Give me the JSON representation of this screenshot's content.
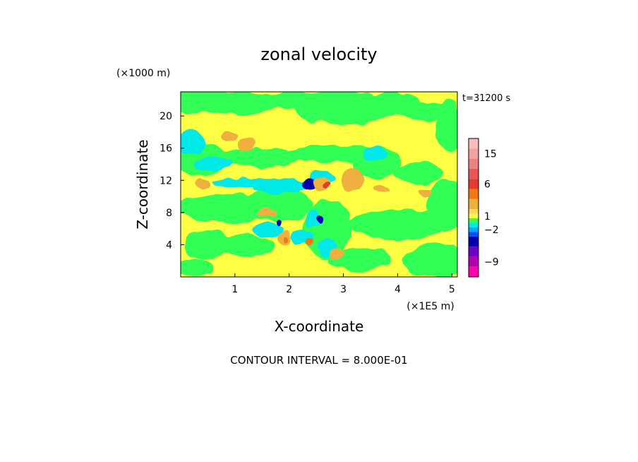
{
  "chart_data": {
    "type": "heatmap",
    "title": "zonal velocity",
    "xlabel": "X-coordinate",
    "ylabel": "Z-coordinate",
    "x_unit_label": "(×1E5 m)",
    "y_unit_label": "(×1000 m)",
    "time_label": "t=31200 s",
    "contour_interval_text": "CONTOUR INTERVAL = 8.000E-01",
    "xlim": [
      0,
      5.1
    ],
    "ylim": [
      0,
      23
    ],
    "x_ticks": [
      1,
      2,
      3,
      4,
      5
    ],
    "y_ticks": [
      4,
      8,
      12,
      16,
      20
    ],
    "colorbar": {
      "labeled_ticks": [
        15,
        6,
        1,
        -2,
        -9
      ],
      "bands": [
        {
          "value": 18,
          "color": "#f7bcbc"
        },
        {
          "value": 15,
          "color": "#f3a2a2"
        },
        {
          "value": 12,
          "color": "#ee8080"
        },
        {
          "value": 9,
          "color": "#ea5757"
        },
        {
          "value": 7,
          "color": "#e53a2c"
        },
        {
          "value": 5,
          "color": "#f07a10"
        },
        {
          "value": 3,
          "color": "#f0b040"
        },
        {
          "value": 1.6,
          "color": "#f5d75a"
        },
        {
          "value": 0.8,
          "color": "#ffff44"
        },
        {
          "value": 0,
          "color": "#33ff55"
        },
        {
          "value": -0.8,
          "color": "#00e8e8"
        },
        {
          "value": -1.6,
          "color": "#00a8ff"
        },
        {
          "value": -2.4,
          "color": "#0050ff"
        },
        {
          "value": -4,
          "color": "#0000b0"
        },
        {
          "value": -7,
          "color": "#7000c0"
        },
        {
          "value": -10,
          "color": "#b000b0"
        },
        {
          "value": -13,
          "color": "#ff00b0"
        }
      ]
    },
    "field": {
      "background": "#ffff44",
      "blobs": [
        {
          "cx": 0.15,
          "cz": 22.0,
          "rx": 0.6,
          "rz": 1.8,
          "color": "#33ff55"
        },
        {
          "cx": 1.0,
          "cz": 21.6,
          "rx": 0.9,
          "rz": 1.4,
          "color": "#33ff55"
        },
        {
          "cx": 2.2,
          "cz": 22.0,
          "rx": 0.7,
          "rz": 1.1,
          "color": "#33ff55"
        },
        {
          "cx": 3.0,
          "cz": 21.0,
          "rx": 0.9,
          "rz": 2.1,
          "color": "#33ff55"
        },
        {
          "cx": 3.9,
          "cz": 21.6,
          "rx": 0.5,
          "rz": 1.4,
          "color": "#33ff55"
        },
        {
          "cx": 4.5,
          "cz": 20.5,
          "rx": 0.55,
          "rz": 1.1,
          "color": "#33ff55"
        },
        {
          "cx": 4.95,
          "cz": 18.5,
          "rx": 0.25,
          "rz": 3.2,
          "color": "#33ff55"
        },
        {
          "cx": 0.4,
          "cz": 14.5,
          "rx": 0.5,
          "rz": 2.0,
          "color": "#33ff55"
        },
        {
          "cx": 1.4,
          "cz": 14.8,
          "rx": 0.8,
          "rz": 1.3,
          "color": "#33ff55"
        },
        {
          "cx": 2.8,
          "cz": 15.3,
          "rx": 0.8,
          "rz": 1.0,
          "color": "#33ff55"
        },
        {
          "cx": 3.6,
          "cz": 14.2,
          "rx": 0.45,
          "rz": 1.9,
          "color": "#33ff55"
        },
        {
          "cx": 4.4,
          "cz": 13.0,
          "rx": 0.45,
          "rz": 1.4,
          "color": "#33ff55"
        },
        {
          "cx": 4.9,
          "cz": 9.0,
          "rx": 0.35,
          "rz": 3.2,
          "color": "#33ff55"
        },
        {
          "cx": 4.0,
          "cz": 6.5,
          "rx": 0.9,
          "rz": 1.9,
          "color": "#33ff55"
        },
        {
          "cx": 4.7,
          "cz": 2.0,
          "rx": 0.6,
          "rz": 2.1,
          "color": "#33ff55"
        },
        {
          "cx": 3.3,
          "cz": 2.2,
          "rx": 0.6,
          "rz": 1.4,
          "color": "#33ff55"
        },
        {
          "cx": 2.7,
          "cz": 6.0,
          "rx": 0.45,
          "rz": 3.6,
          "color": "#33ff55"
        },
        {
          "cx": 1.8,
          "cz": 9.0,
          "rx": 0.6,
          "rz": 2.2,
          "color": "#33ff55"
        },
        {
          "cx": 0.8,
          "cz": 8.6,
          "rx": 0.9,
          "rz": 1.7,
          "color": "#33ff55"
        },
        {
          "cx": 0.5,
          "cz": 4.0,
          "rx": 0.45,
          "rz": 1.8,
          "color": "#33ff55"
        },
        {
          "cx": 0.25,
          "cz": 1.2,
          "rx": 0.35,
          "rz": 1.1,
          "color": "#33ff55"
        },
        {
          "cx": 1.2,
          "cz": 3.8,
          "rx": 0.5,
          "rz": 1.4,
          "color": "#33ff55"
        },
        {
          "cx": 0.2,
          "cz": 16.8,
          "rx": 0.3,
          "rz": 1.4,
          "color": "#00e8e8"
        },
        {
          "cx": 0.6,
          "cz": 14.0,
          "rx": 0.35,
          "rz": 0.9,
          "color": "#00e8e8"
        },
        {
          "cx": 1.1,
          "cz": 11.8,
          "rx": 0.5,
          "rz": 0.6,
          "color": "#00e8e8"
        },
        {
          "cx": 1.85,
          "cz": 11.3,
          "rx": 0.5,
          "rz": 0.9,
          "color": "#00e8e8"
        },
        {
          "cx": 2.6,
          "cz": 12.2,
          "rx": 0.25,
          "rz": 1.1,
          "color": "#00e8e8"
        },
        {
          "cx": 3.6,
          "cz": 15.2,
          "rx": 0.2,
          "rz": 1.0,
          "color": "#00e8e8"
        },
        {
          "cx": 1.6,
          "cz": 5.8,
          "rx": 0.3,
          "rz": 0.8,
          "color": "#00e8e8"
        },
        {
          "cx": 2.25,
          "cz": 5.0,
          "rx": 0.2,
          "rz": 0.9,
          "color": "#00e8e8"
        },
        {
          "cx": 2.7,
          "cz": 3.8,
          "rx": 0.18,
          "rz": 1.2,
          "color": "#00e8e8"
        },
        {
          "cx": 2.45,
          "cz": 7.2,
          "rx": 0.15,
          "rz": 1.1,
          "color": "#00e8e8"
        },
        {
          "cx": 2.4,
          "cz": 11.7,
          "rx": 0.18,
          "rz": 0.5,
          "color": "#00a8ff"
        },
        {
          "cx": 2.35,
          "cz": 11.5,
          "rx": 0.12,
          "rz": 0.7,
          "color": "#0000b0"
        },
        {
          "cx": 1.8,
          "cz": 6.7,
          "rx": 0.05,
          "rz": 0.4,
          "color": "#0000b0"
        },
        {
          "cx": 2.6,
          "cz": 7.3,
          "rx": 0.05,
          "rz": 0.5,
          "color": "#0000b0"
        },
        {
          "cx": 2.6,
          "cz": 11.5,
          "rx": 0.2,
          "rz": 0.9,
          "color": "#f0b040"
        },
        {
          "cx": 2.72,
          "cz": 11.3,
          "rx": 0.08,
          "rz": 0.4,
          "color": "#e53a2c"
        },
        {
          "cx": 3.15,
          "cz": 12.2,
          "rx": 0.22,
          "rz": 1.5,
          "color": "#f0b040"
        },
        {
          "cx": 3.7,
          "cz": 11.0,
          "rx": 0.15,
          "rz": 0.5,
          "color": "#f0b040"
        },
        {
          "cx": 4.5,
          "cz": 10.5,
          "rx": 0.12,
          "rz": 0.5,
          "color": "#f0b040"
        },
        {
          "cx": 0.9,
          "cz": 17.5,
          "rx": 0.15,
          "rz": 0.6,
          "color": "#f0b040"
        },
        {
          "cx": 1.2,
          "cz": 16.5,
          "rx": 0.15,
          "rz": 0.7,
          "color": "#f0b040"
        },
        {
          "cx": 0.4,
          "cz": 11.5,
          "rx": 0.15,
          "rz": 0.6,
          "color": "#f0b040"
        },
        {
          "cx": 1.6,
          "cz": 8.0,
          "rx": 0.18,
          "rz": 0.6,
          "color": "#f0b040"
        },
        {
          "cx": 1.9,
          "cz": 4.8,
          "rx": 0.15,
          "rz": 0.8,
          "color": "#f0b040"
        },
        {
          "cx": 1.95,
          "cz": 4.7,
          "rx": 0.05,
          "rz": 0.4,
          "color": "#f07a10"
        },
        {
          "cx": 2.4,
          "cz": 4.2,
          "rx": 0.06,
          "rz": 0.5,
          "color": "#f07a10"
        },
        {
          "cx": 2.9,
          "cz": 2.8,
          "rx": 0.15,
          "rz": 0.7,
          "color": "#f0b040"
        }
      ]
    }
  }
}
